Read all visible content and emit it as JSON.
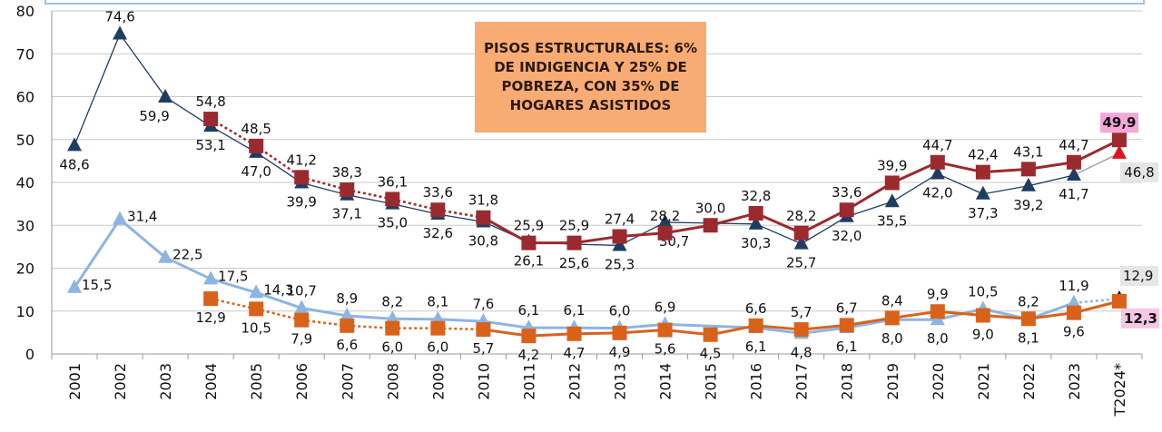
{
  "chart_data": {
    "type": "line",
    "title": "",
    "xlabel": "",
    "ylabel": "",
    "ylim": [
      0,
      80
    ],
    "yticks": [
      0,
      10,
      20,
      30,
      40,
      50,
      60,
      70,
      80
    ],
    "grid": true,
    "legend": "none",
    "categories": [
      "2001",
      "2002",
      "2003",
      "2004",
      "2005",
      "2006",
      "2007",
      "2008",
      "2009",
      "2010",
      "2011",
      "2012",
      "2013",
      "2014",
      "2015",
      "2016",
      "2017",
      "2018",
      "2019",
      "2020",
      "2021",
      "2022",
      "2023",
      "T2024*"
    ],
    "annotation": "PISOS ESTRUCTURALES: 6% DE INDIGENCIA Y 25% DE POBREZA, CON 35% DE HOGARES ASISTIDOS",
    "series": [
      {
        "color": "#1f3d63",
        "marker": "triangle",
        "values": [
          48.6,
          74.6,
          59.9,
          53.1,
          47.0,
          39.9,
          37.1,
          35.0,
          32.6,
          30.8,
          26.1,
          25.6,
          25.3,
          30.7,
          null,
          30.3,
          25.7,
          32.0,
          35.5,
          42.0,
          37.3,
          39.2,
          41.7,
          46.8
        ],
        "last_marker_color": "#e0141e"
      },
      {
        "color": "#9b2a2f",
        "marker": "square",
        "values": [
          null,
          null,
          null,
          54.8,
          48.5,
          41.2,
          38.3,
          36.1,
          33.6,
          31.8,
          25.9,
          25.9,
          27.4,
          28.2,
          30.0,
          32.8,
          28.2,
          33.6,
          39.9,
          44.7,
          42.4,
          43.1,
          44.7,
          49.9
        ],
        "dotted_until": "2010"
      },
      {
        "color": "#8db4e2",
        "marker": "triangle",
        "values": [
          15.5,
          31.4,
          22.5,
          17.5,
          14.3,
          10.7,
          8.9,
          8.2,
          8.1,
          7.6,
          6.1,
          6.1,
          6.0,
          6.9,
          null,
          6.1,
          4.8,
          6.1,
          8.0,
          8.0,
          10.5,
          8.1,
          11.9,
          12.9
        ],
        "dotted_from": "2023",
        "last_marker_color": "#111111"
      },
      {
        "color": "#d9621a",
        "marker": "square",
        "values": [
          null,
          null,
          null,
          12.9,
          10.5,
          7.9,
          6.6,
          6.0,
          6.0,
          5.7,
          4.2,
          4.7,
          4.9,
          5.6,
          4.5,
          6.6,
          5.7,
          6.7,
          8.4,
          9.9,
          9.0,
          8.2,
          9.6,
          12.3
        ],
        "dotted_until": "2010"
      }
    ],
    "highlighted_labels": {
      "49.9": "#f4a6d7",
      "12.3": "#f6c6e6",
      "46.8": "#e6e6e6",
      "12.9": "#e6e6e6"
    }
  }
}
